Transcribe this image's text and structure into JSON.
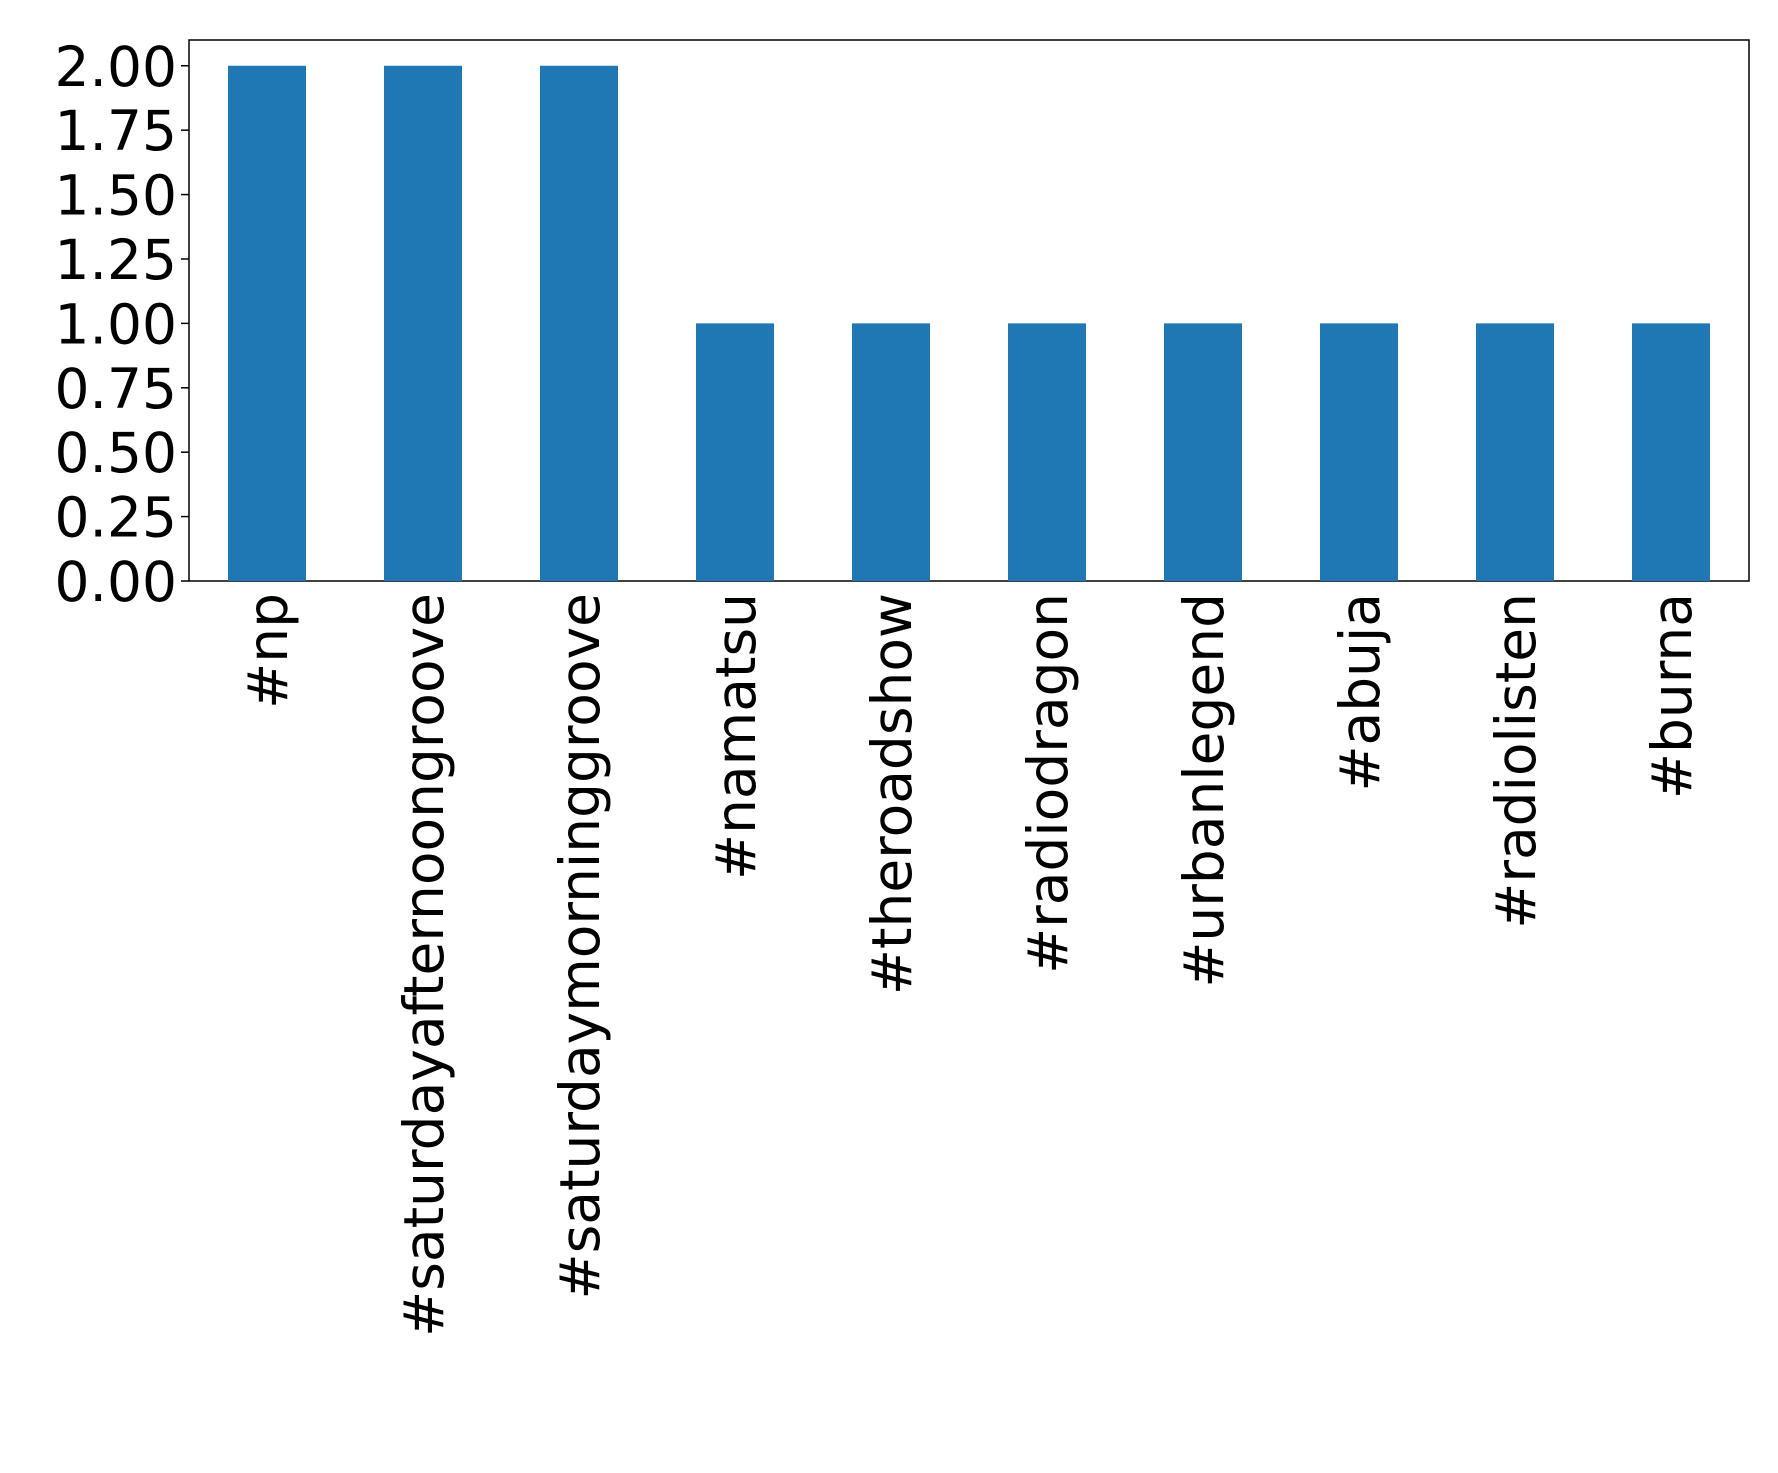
{
  "chart_data": {
    "type": "bar",
    "categories": [
      "#np",
      "#saturdayafternoongroove",
      "#saturdaymorninggroove",
      "#namatsu",
      "#theroadshow",
      "#radiodragon",
      "#urbanlegend",
      "#abuja",
      "#radiolisten",
      "#burna"
    ],
    "values": [
      2,
      2,
      2,
      1,
      1,
      1,
      1,
      1,
      1,
      1
    ],
    "color": "#1f77b4",
    "ylim": [
      0,
      2.1
    ],
    "yticks": [
      {
        "value": 0,
        "label": "0.00"
      },
      {
        "value": 0.25,
        "label": "0.25"
      },
      {
        "value": 0.5,
        "label": "0.50"
      },
      {
        "value": 0.75,
        "label": "0.75"
      },
      {
        "value": 1,
        "label": "1.00"
      },
      {
        "value": 1.25,
        "label": "1.25"
      },
      {
        "value": 1.5,
        "label": "1.50"
      },
      {
        "value": 1.75,
        "label": "1.75"
      },
      {
        "value": 2,
        "label": "2.00"
      }
    ],
    "grid": false
  }
}
